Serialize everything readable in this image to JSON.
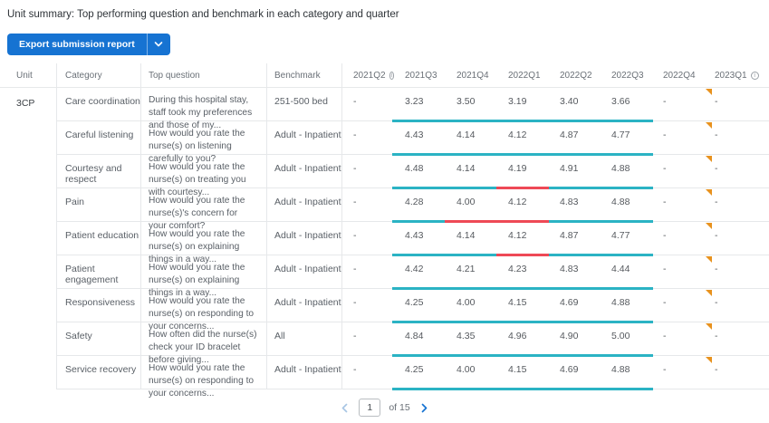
{
  "page": {
    "title": "Unit summary: Top performing question and benchmark in each category and quarter"
  },
  "toolbar": {
    "export_button_label": "Export submission report",
    "export_dropdown_icon": "chevron-down-icon"
  },
  "table": {
    "headers": [
      {
        "label": "Unit"
      },
      {
        "label": "Category"
      },
      {
        "label": "Top question"
      },
      {
        "label": "Benchmark"
      },
      {
        "label": "2021Q2",
        "info": true
      },
      {
        "label": "2021Q3"
      },
      {
        "label": "2021Q4"
      },
      {
        "label": "2022Q1"
      },
      {
        "label": "2022Q2"
      },
      {
        "label": "2022Q3"
      },
      {
        "label": "2022Q4"
      },
      {
        "label": "2023Q1",
        "info": true
      }
    ],
    "unit": "3CP",
    "rows": [
      {
        "category": "Care coordination",
        "question": "During this hospital stay, staff took my preferences and those of my...",
        "benchmark": "251-500 bed",
        "values": [
          "-",
          "3.23",
          "3.50",
          "3.19",
          "3.40",
          "3.66",
          "-",
          "-"
        ],
        "bar": [
          "teal",
          "teal",
          "teal",
          "teal",
          "teal"
        ],
        "flag": true
      },
      {
        "category": "Careful listening",
        "question": "How would you rate the nurse(s) on listening carefully to you?",
        "benchmark": "Adult - Inpatient",
        "values": [
          "-",
          "4.43",
          "4.14",
          "4.12",
          "4.87",
          "4.77",
          "-",
          "-"
        ],
        "bar": [
          "teal",
          "teal",
          "teal",
          "teal",
          "teal"
        ],
        "flag": true
      },
      {
        "category": "Courtesy and respect",
        "question": "How would you rate the nurse(s) on treating you with courtesy...",
        "benchmark": "Adult - Inpatient",
        "values": [
          "-",
          "4.48",
          "4.14",
          "4.19",
          "4.91",
          "4.88",
          "-",
          "-"
        ],
        "bar": [
          "teal",
          "teal",
          "red",
          "teal",
          "teal"
        ],
        "flag": true
      },
      {
        "category": "Pain",
        "question": "How would you rate the nurse(s)'s concern for your comfort?",
        "benchmark": "Adult - Inpatient",
        "values": [
          "-",
          "4.28",
          "4.00",
          "4.12",
          "4.83",
          "4.88",
          "-",
          "-"
        ],
        "bar": [
          "teal",
          "red",
          "red",
          "teal",
          "teal"
        ],
        "flag": true
      },
      {
        "category": "Patient education",
        "question": "How would you rate the nurse(s) on explaining things in a way...",
        "benchmark": "Adult - Inpatient",
        "values": [
          "-",
          "4.43",
          "4.14",
          "4.12",
          "4.87",
          "4.77",
          "-",
          "-"
        ],
        "bar": [
          "teal",
          "teal",
          "red",
          "teal",
          "teal"
        ],
        "flag": true
      },
      {
        "category": "Patient engagement",
        "question": "How would you rate the nurse(s) on explaining things in a way...",
        "benchmark": "Adult - Inpatient",
        "values": [
          "-",
          "4.42",
          "4.21",
          "4.23",
          "4.83",
          "4.44",
          "-",
          "-"
        ],
        "bar": [
          "teal",
          "teal",
          "teal",
          "teal",
          "teal"
        ],
        "flag": true
      },
      {
        "category": "Responsiveness",
        "question": "How would you rate the nurse(s) on responding to your concerns...",
        "benchmark": "Adult - Inpatient",
        "values": [
          "-",
          "4.25",
          "4.00",
          "4.15",
          "4.69",
          "4.88",
          "-",
          "-"
        ],
        "bar": [
          "teal",
          "teal",
          "teal",
          "teal",
          "teal"
        ],
        "flag": true
      },
      {
        "category": "Safety",
        "question": "How often did the nurse(s) check your ID bracelet before giving...",
        "benchmark": "All",
        "values": [
          "-",
          "4.84",
          "4.35",
          "4.96",
          "4.90",
          "5.00",
          "-",
          "-"
        ],
        "bar": [
          "teal",
          "teal",
          "teal",
          "teal",
          "teal"
        ],
        "flag": true
      },
      {
        "category": "Service recovery",
        "question": "How would you rate the nurse(s) on responding to your concerns...",
        "benchmark": "Adult - Inpatient",
        "values": [
          "-",
          "4.25",
          "4.00",
          "4.15",
          "4.69",
          "4.88",
          "-",
          "-"
        ],
        "bar": [
          "teal",
          "teal",
          "teal",
          "teal",
          "teal"
        ],
        "flag": true
      }
    ]
  },
  "pagination": {
    "prev_icon": "chevron-left-icon",
    "next_icon": "chevron-right-icon",
    "current_page": "1",
    "of_label": "of 15"
  },
  "colors": {
    "accent_blue": "#1673d2",
    "bar_teal": "#2bb3c4",
    "bar_red": "#ee4956",
    "flag_orange": "#e8921e",
    "disabled_chevron": "#a9c6e4"
  }
}
